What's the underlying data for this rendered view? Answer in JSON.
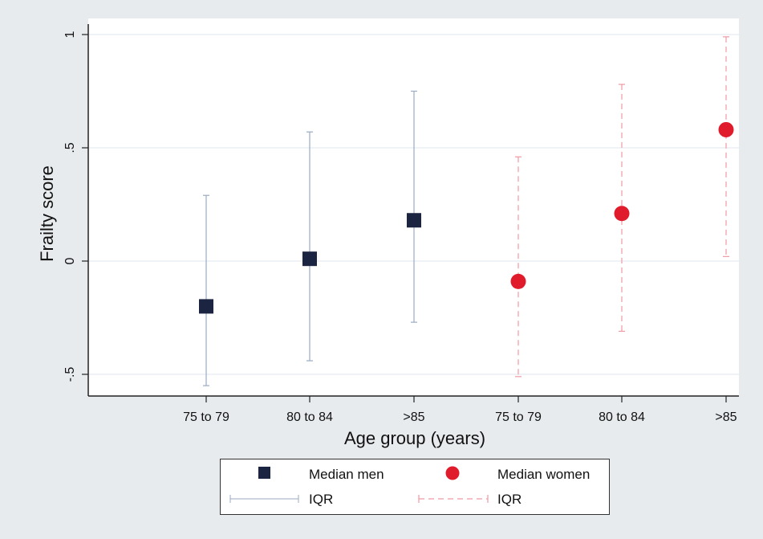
{
  "chart_data": {
    "type": "scatter",
    "xlabel": "Age group (years)",
    "ylabel": "Frailty score",
    "ylim": [
      -0.6,
      1.05
    ],
    "yticks": [
      {
        "value": -0.5,
        "label": "-.5"
      },
      {
        "value": 0,
        "label": "0"
      },
      {
        "value": 0.5,
        "label": ".5"
      },
      {
        "value": 1,
        "label": "1"
      }
    ],
    "categories": [
      "75 to 79",
      "80 to 84",
      ">85",
      "75 to 79",
      "80 to 84",
      ">85"
    ],
    "grid": true,
    "legend_position": "bottom",
    "series": [
      {
        "name": "Median men",
        "marker": "square",
        "color": "#1b2542",
        "iqr_style": "solid",
        "iqr_color": "#9aabc2",
        "points": [
          {
            "x_index": 0,
            "median": -0.2,
            "iqr_low": -0.55,
            "iqr_high": 0.29
          },
          {
            "x_index": 1,
            "median": 0.01,
            "iqr_low": -0.44,
            "iqr_high": 0.57
          },
          {
            "x_index": 2,
            "median": 0.18,
            "iqr_low": -0.27,
            "iqr_high": 0.75
          }
        ]
      },
      {
        "name": "Median women",
        "marker": "circle",
        "color": "#e01b2c",
        "iqr_style": "dashed",
        "iqr_color": "#f09aa4",
        "points": [
          {
            "x_index": 3,
            "median": -0.09,
            "iqr_low": -0.51,
            "iqr_high": 0.46
          },
          {
            "x_index": 4,
            "median": 0.21,
            "iqr_low": -0.31,
            "iqr_high": 0.78
          },
          {
            "x_index": 5,
            "median": 0.58,
            "iqr_low": 0.02,
            "iqr_high": 0.99
          }
        ]
      }
    ]
  },
  "legend": {
    "median_men": "Median men",
    "median_women": "Median women",
    "iqr_men": "IQR",
    "iqr_women": "IQR"
  }
}
